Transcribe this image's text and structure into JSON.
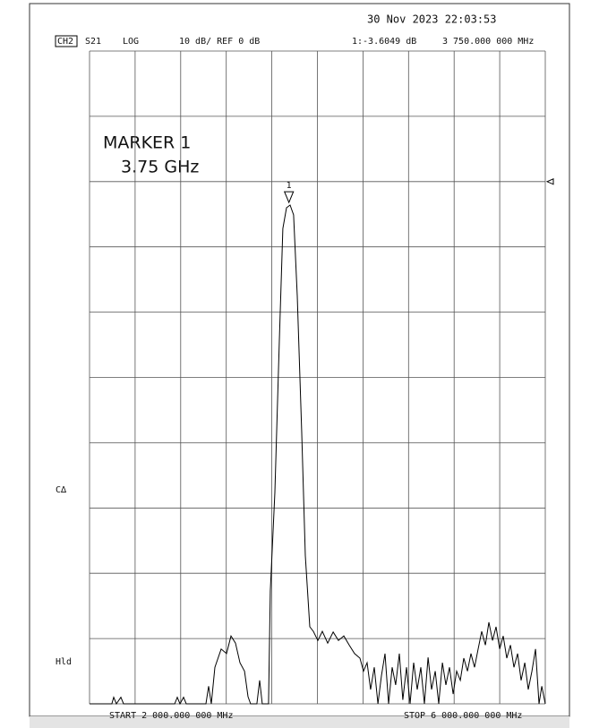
{
  "chart_data": {
    "type": "line",
    "datetime": "30 Nov 2023  22:03:53",
    "channel": "CH2",
    "parameter": "S21",
    "format": "LOG",
    "scale": "10 dB/ REF 0 dB",
    "ref_level": 0,
    "marker": {
      "label": "1",
      "x": 3750,
      "x_label": "3 750.000 000 MHz",
      "value": -3.6049,
      "value_label": "1:-3.6049 dB",
      "title": "MARKER 1",
      "freq": "3.75 GHz"
    },
    "side_labels": [
      "C∆",
      "Hld"
    ],
    "start_label": "START 2 000.000 000 MHz",
    "stop_label": "STOP 6 000.000 000 MHz",
    "xlim": [
      2000,
      6000
    ],
    "ylim": [
      -80,
      20
    ],
    "xticks": [
      2000,
      2400,
      2800,
      3200,
      3600,
      4000,
      4400,
      4800,
      5200,
      5600,
      6000
    ],
    "yticks": [
      -80,
      -70,
      -60,
      -50,
      -40,
      -30,
      -20,
      -10,
      0,
      10,
      20
    ],
    "grid": true,
    "series": [
      {
        "color": "#000000",
        "x": [
          2000,
          2196,
          2212,
          2236,
          2275,
          2299,
          2747,
          2770,
          2794,
          2825,
          2849,
          3022,
          3045,
          3069,
          3100,
          3155,
          3202,
          3242,
          3281,
          3320,
          3360,
          3391,
          3414,
          3469,
          3493,
          3516,
          3571,
          3587,
          3627,
          3666,
          3697,
          3729,
          3760,
          3791,
          3823,
          3862,
          3894,
          3933,
          3965,
          4004,
          4043,
          4090,
          4138,
          4185,
          4232,
          4279,
          4326,
          4373,
          4405,
          4436,
          4467,
          4499,
          4531,
          4562,
          4593,
          4625,
          4656,
          4687,
          4719,
          4750,
          4782,
          4813,
          4845,
          4876,
          4908,
          4939,
          4971,
          5002,
          5034,
          5065,
          5097,
          5128,
          5159,
          5191,
          5222,
          5254,
          5285,
          5317,
          5348,
          5379,
          5411,
          5442,
          5474,
          5505,
          5537,
          5568,
          5600,
          5631,
          5662,
          5694,
          5725,
          5757,
          5788,
          5820,
          5851,
          5883,
          5914,
          5945,
          5969,
          6000
        ],
        "values": [
          -80,
          -80,
          -79,
          -80,
          -79,
          -80,
          -80,
          -79,
          -80,
          -79,
          -80,
          -80,
          -77.3,
          -80,
          -74.4,
          -71.6,
          -72.3,
          -69.6,
          -70.7,
          -73.7,
          -75,
          -78.9,
          -80,
          -80,
          -76.4,
          -80,
          -80,
          -62.7,
          -47.6,
          -24.3,
          -7.2,
          -4,
          -3.6,
          -5.1,
          -17.5,
          -38.1,
          -57.3,
          -68.2,
          -68.9,
          -70.3,
          -68.9,
          -70.7,
          -69,
          -70.3,
          -69.6,
          -71,
          -72.3,
          -73,
          -75,
          -73.7,
          -77.8,
          -74.4,
          -80,
          -75.7,
          -72.3,
          -80,
          -74.4,
          -77.1,
          -72.3,
          -79.4,
          -74.4,
          -80,
          -73.7,
          -77.8,
          -74.4,
          -80,
          -72.9,
          -77.8,
          -75,
          -80,
          -73.7,
          -77.1,
          -74.4,
          -78.5,
          -75,
          -76.4,
          -73,
          -75,
          -72.3,
          -74.4,
          -71.6,
          -68.9,
          -71,
          -67.5,
          -70.3,
          -68.2,
          -71.6,
          -69.6,
          -73,
          -71,
          -74.4,
          -72.3,
          -76.4,
          -73.7,
          -77.8,
          -75,
          -71.6,
          -80,
          -77.3,
          -80
        ]
      }
    ]
  }
}
